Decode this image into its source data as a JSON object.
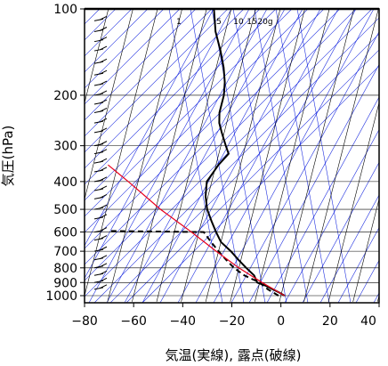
{
  "chart_data": {
    "type": "line",
    "title": "",
    "xlabel": "気温(実線), 露点(破線)",
    "ylabel": "気圧(hPa)",
    "xlim": [
      -80,
      40
    ],
    "ylim": [
      1050,
      100
    ],
    "y_scale": "log",
    "x_ticks": [
      -80,
      -60,
      -40,
      -20,
      0,
      20,
      40
    ],
    "x_tick_labels": [
      "−80",
      "−60",
      "−40",
      "−20",
      "0",
      "20",
      "40"
    ],
    "y_ticks": [
      100,
      200,
      300,
      400,
      500,
      600,
      700,
      800,
      900,
      1000
    ],
    "y_tick_labels": [
      "100",
      "200",
      "300",
      "400",
      "500",
      "600",
      "700",
      "800",
      "900",
      "1000"
    ],
    "skew_per_decade": 82,
    "mixing_ratio_labels": [
      "1",
      "5",
      "10",
      "15",
      "20g"
    ],
    "series": [
      {
        "style": "solid",
        "color": "#000000",
        "points": [
          [
            1.5,
            1000
          ],
          [
            -1,
            975
          ],
          [
            -4,
            950
          ],
          [
            -7,
            925
          ],
          [
            -11,
            900
          ],
          [
            -13,
            850
          ],
          [
            -17,
            800
          ],
          [
            -21,
            750
          ],
          [
            -25,
            700
          ],
          [
            -30,
            650
          ],
          [
            -33,
            600
          ],
          [
            -36,
            550
          ],
          [
            -39,
            500
          ],
          [
            -41,
            450
          ],
          [
            -42,
            400
          ],
          [
            -39,
            350
          ],
          [
            -36,
            320
          ],
          [
            -38,
            300
          ],
          [
            -41,
            270
          ],
          [
            -43,
            250
          ],
          [
            -44,
            230
          ],
          [
            -44,
            200
          ],
          [
            -45,
            180
          ],
          [
            -47,
            160
          ],
          [
            -50,
            140
          ],
          [
            -54,
            120
          ],
          [
            -57,
            100
          ]
        ]
      },
      {
        "style": "dashed",
        "color": "#000000",
        "points": [
          [
            -1,
            1000
          ],
          [
            -6,
            950
          ],
          [
            -10,
            900
          ],
          [
            -17,
            850
          ],
          [
            -22,
            800
          ],
          [
            -26,
            750
          ],
          [
            -30,
            700
          ],
          [
            -34,
            650
          ],
          [
            -38,
            600
          ],
          [
            -76,
            595
          ]
        ]
      },
      {
        "style": "solid",
        "color": "#e8001c",
        "points": [
          [
            1.5,
            1000
          ],
          [
            -9,
            900
          ],
          [
            -20,
            800
          ],
          [
            -31,
            700
          ],
          [
            -43,
            600
          ],
          [
            -58,
            500
          ],
          [
            -74,
            400
          ],
          [
            -84,
            350
          ]
        ]
      }
    ]
  }
}
